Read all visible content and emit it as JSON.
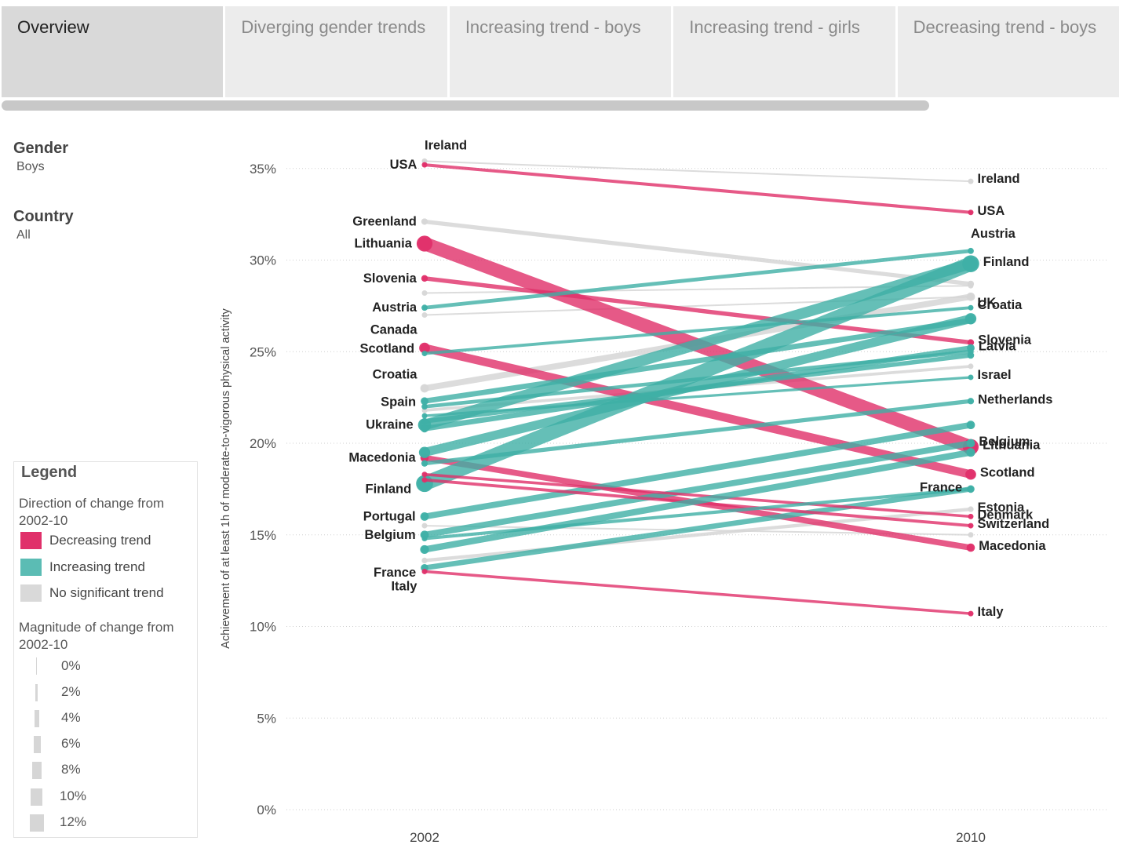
{
  "tabs": [
    {
      "label": "Overview",
      "active": true
    },
    {
      "label": "Diverging gender trends",
      "active": false
    },
    {
      "label": "Increasing trend - boys",
      "active": false
    },
    {
      "label": "Increasing trend - girls",
      "active": false
    },
    {
      "label": "Decreasing trend - boys",
      "active": false
    }
  ],
  "filters": {
    "gender": {
      "title": "Gender",
      "value": "Boys"
    },
    "country": {
      "title": "Country",
      "value": "All"
    }
  },
  "legend": {
    "title": "Legend",
    "direction_title": "Direction of change from 2002-10",
    "items": [
      {
        "label": "Decreasing trend",
        "color": "#e0306a"
      },
      {
        "label": "Increasing trend",
        "color": "#5bbcb4"
      },
      {
        "label": "No significant trend",
        "color": "#d9d9d9"
      }
    ],
    "magnitude_title": "Magnitude of change from 2002-10",
    "magnitudes": [
      "0%",
      "2%",
      "4%",
      "6%",
      "8%",
      "10%",
      "12%"
    ]
  },
  "colors": {
    "decreasing": "#e0306a",
    "increasing": "#3fb0a6",
    "none": "#d6d6d6"
  },
  "chart_data": {
    "type": "line",
    "chart_kind": "slope",
    "ylabel": "Achievement of at least 1h of moderate-to-vigorous physical activity",
    "x": [
      "2002",
      "2010"
    ],
    "ylim": [
      0,
      35
    ],
    "y_ticks": [
      "0%",
      "5%",
      "10%",
      "15%",
      "20%",
      "25%",
      "30%",
      "35%"
    ],
    "grid": true,
    "series": [
      {
        "name": "Ireland",
        "trend": "none",
        "values": [
          35.4,
          34.3
        ]
      },
      {
        "name": "USA",
        "trend": "decreasing",
        "values": [
          35.2,
          32.6
        ]
      },
      {
        "name": "Greenland",
        "trend": "none",
        "values": [
          32.1,
          28.7
        ]
      },
      {
        "name": "Lithuania",
        "trend": "decreasing",
        "values": [
          30.9,
          19.8
        ]
      },
      {
        "name": "Slovenia",
        "trend": "decreasing",
        "values": [
          29.0,
          25.5
        ]
      },
      {
        "name": "Austria",
        "trend": "increasing",
        "values": [
          27.4,
          30.5
        ]
      },
      {
        "name": "Canada",
        "trend": "none",
        "values": [
          27.0,
          28.0
        ]
      },
      {
        "name": "Scotland",
        "trend": "decreasing",
        "values": [
          25.2,
          18.3
        ]
      },
      {
        "name": "Croatia",
        "trend": "increasing",
        "values": [
          24.9,
          27.4
        ]
      },
      {
        "name": "Spain",
        "trend": "increasing",
        "values": [
          22.3,
          26.7
        ]
      },
      {
        "name": "Ukraine",
        "trend": "increasing",
        "values": [
          21.0,
          29.8
        ]
      },
      {
        "name": "Macedonia",
        "trend": "decreasing",
        "values": [
          19.2,
          14.3
        ]
      },
      {
        "name": "Finland",
        "trend": "increasing",
        "values": [
          17.8,
          29.8
        ]
      },
      {
        "name": "Portugal",
        "trend": "increasing",
        "values": [
          16.0,
          21.0
        ]
      },
      {
        "name": "Belgium",
        "trend": "increasing",
        "values": [
          15.0,
          20.0
        ]
      },
      {
        "name": "France",
        "trend": "increasing",
        "values": [
          13.2,
          17.5
        ]
      },
      {
        "name": "Italy",
        "trend": "decreasing",
        "values": [
          13.0,
          10.7
        ]
      },
      {
        "name": "UK",
        "trend": "none",
        "values": [
          28.2,
          28.6
        ]
      },
      {
        "name": "Latvia",
        "trend": "increasing",
        "values": [
          20.8,
          25.2
        ]
      },
      {
        "name": "Israel",
        "trend": "increasing",
        "values": [
          21.5,
          23.6
        ]
      },
      {
        "name": "Netherlands",
        "trend": "increasing",
        "values": [
          18.9,
          22.3
        ]
      },
      {
        "name": "Estonia",
        "trend": "none",
        "values": [
          13.6,
          16.4
        ]
      },
      {
        "name": "Switzerland",
        "trend": "decreasing",
        "values": [
          18.0,
          15.5
        ]
      },
      {
        "name": "Denmark",
        "trend": "decreasing",
        "values": [
          18.3,
          16.0
        ]
      },
      {
        "name": "",
        "trend": "none",
        "values": [
          21.8,
          24.2
        ]
      },
      {
        "name": "",
        "trend": "increasing",
        "values": [
          21.2,
          24.8
        ]
      },
      {
        "name": "",
        "trend": "increasing",
        "values": [
          19.5,
          26.8
        ]
      },
      {
        "name": "",
        "trend": "increasing",
        "values": [
          14.8,
          17.5
        ]
      },
      {
        "name": "",
        "trend": "increasing",
        "values": [
          14.2,
          19.5
        ]
      },
      {
        "name": "",
        "trend": "increasing",
        "values": [
          22.0,
          25.0
        ]
      },
      {
        "name": "",
        "trend": "none",
        "values": [
          23.0,
          28.0
        ]
      },
      {
        "name": "",
        "trend": "none",
        "values": [
          15.5,
          15.0
        ]
      }
    ],
    "labels_2002": [
      "Ireland",
      "USA",
      "Greenland",
      "Lithuania",
      "Slovenia",
      "Austria",
      "Canada",
      "Scotland",
      "Croatia",
      "Spain",
      "Ukraine",
      "Macedonia",
      "Finland",
      "Portugal",
      "Belgium",
      "France",
      "Italy"
    ],
    "labels_2010": [
      "Ireland",
      "USA",
      "Austria",
      "Finland",
      "UK",
      "Croatia",
      "Macedonia",
      "Slovenia",
      "Latvia",
      "Israel",
      "Netherlands",
      "Belgium",
      "Lithuania",
      "Scotland",
      "France",
      "Estonia",
      "Switzerland",
      "Denmark",
      "Italy"
    ]
  }
}
